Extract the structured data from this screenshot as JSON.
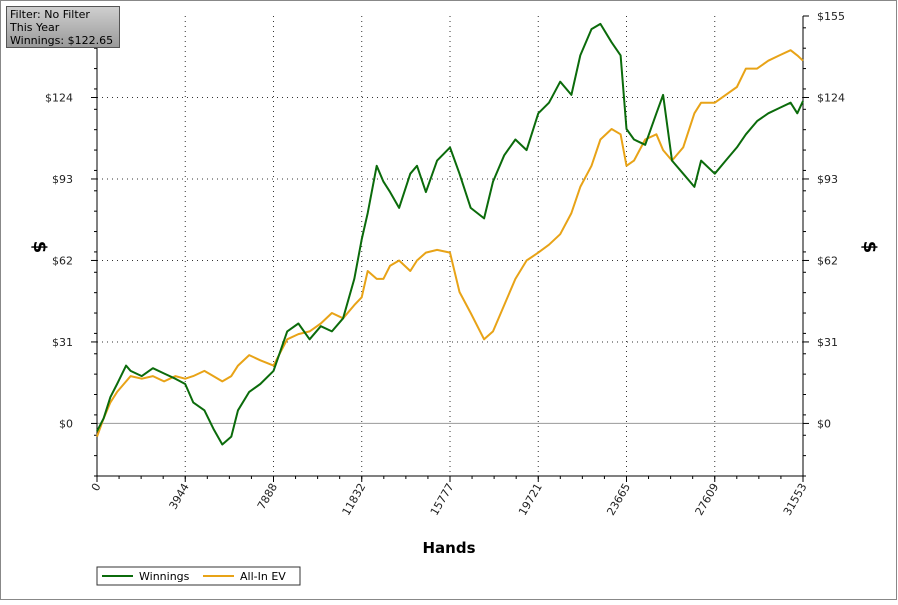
{
  "info_box": {
    "filter": "Filter: No Filter",
    "period": "This Year",
    "winnings": "Winnings: $122.65"
  },
  "chart_data": {
    "type": "line",
    "xlabel": "Hands",
    "ylabel": "$",
    "xlim": [
      0,
      31553
    ],
    "ylim": [
      -20,
      155
    ],
    "x_ticks": [
      0,
      3944,
      7888,
      11832,
      15777,
      19721,
      23665,
      27609,
      31553
    ],
    "y_ticks": [
      0,
      31,
      62,
      93,
      124,
      155
    ],
    "y_tick_labels": [
      "$0",
      "$31",
      "$62",
      "$93",
      "$124",
      "$155"
    ],
    "grid": true,
    "legend_position": "bottom-left",
    "colors": {
      "Winnings": "#0b6b0b",
      "All-In EV": "#e8a317",
      "zero_line": "#9a9a9a"
    },
    "series": [
      {
        "name": "Winnings",
        "x": [
          0,
          300,
          600,
          900,
          1300,
          1500,
          2000,
          2500,
          3000,
          3500,
          3944,
          4300,
          4800,
          5200,
          5600,
          6000,
          6300,
          6800,
          7300,
          7888,
          8500,
          9000,
          9500,
          10000,
          10500,
          11000,
          11500,
          11832,
          12100,
          12500,
          12800,
          13100,
          13500,
          14000,
          14300,
          14700,
          15200,
          15777,
          16200,
          16700,
          17300,
          17700,
          18200,
          18700,
          19200,
          19721,
          20200,
          20700,
          21200,
          21600,
          22100,
          22500,
          23000,
          23400,
          23665,
          24000,
          24500,
          25000,
          25300,
          25700,
          26200,
          26700,
          27000,
          27609,
          28100,
          28600,
          29000,
          29500,
          30000,
          30500,
          31000,
          31300,
          31553
        ],
        "y": [
          -3,
          2,
          10,
          15,
          22,
          20,
          18,
          21,
          19,
          17,
          15,
          8,
          5,
          -2,
          -8,
          -5,
          5,
          12,
          15,
          20,
          35,
          38,
          32,
          37,
          35,
          40,
          55,
          70,
          80,
          98,
          92,
          88,
          82,
          95,
          98,
          88,
          100,
          105,
          95,
          82,
          78,
          92,
          102,
          108,
          104,
          118,
          122,
          130,
          125,
          140,
          150,
          152,
          145,
          140,
          112,
          108,
          106,
          118,
          125,
          100,
          95,
          90,
          100,
          95,
          100,
          105,
          110,
          115,
          118,
          120,
          122,
          118,
          122.65
        ]
      },
      {
        "name": "All-In EV",
        "x": [
          0,
          300,
          600,
          900,
          1300,
          1500,
          2000,
          2500,
          3000,
          3500,
          3944,
          4300,
          4800,
          5200,
          5600,
          6000,
          6300,
          6800,
          7300,
          7888,
          8500,
          9000,
          9500,
          10000,
          10500,
          11000,
          11500,
          11832,
          12100,
          12500,
          12800,
          13100,
          13500,
          14000,
          14300,
          14700,
          15200,
          15777,
          16200,
          16700,
          17300,
          17700,
          18200,
          18700,
          19200,
          19721,
          20200,
          20700,
          21200,
          21600,
          22100,
          22500,
          23000,
          23400,
          23665,
          24000,
          24500,
          25000,
          25300,
          25700,
          26200,
          26700,
          27000,
          27609,
          28100,
          28600,
          29000,
          29500,
          30000,
          30500,
          31000,
          31300,
          31553
        ],
        "y": [
          -5,
          2,
          8,
          12,
          16,
          18,
          17,
          18,
          16,
          18,
          17,
          18,
          20,
          18,
          16,
          18,
          22,
          26,
          24,
          22,
          32,
          34,
          35,
          38,
          42,
          40,
          45,
          48,
          58,
          55,
          55,
          60,
          62,
          58,
          62,
          65,
          66,
          65,
          50,
          42,
          32,
          35,
          45,
          55,
          62,
          65,
          68,
          72,
          80,
          90,
          98,
          108,
          112,
          110,
          98,
          100,
          108,
          110,
          104,
          100,
          105,
          118,
          122,
          122,
          125,
          128,
          135,
          135,
          138,
          140,
          142,
          140,
          138
        ]
      }
    ]
  }
}
